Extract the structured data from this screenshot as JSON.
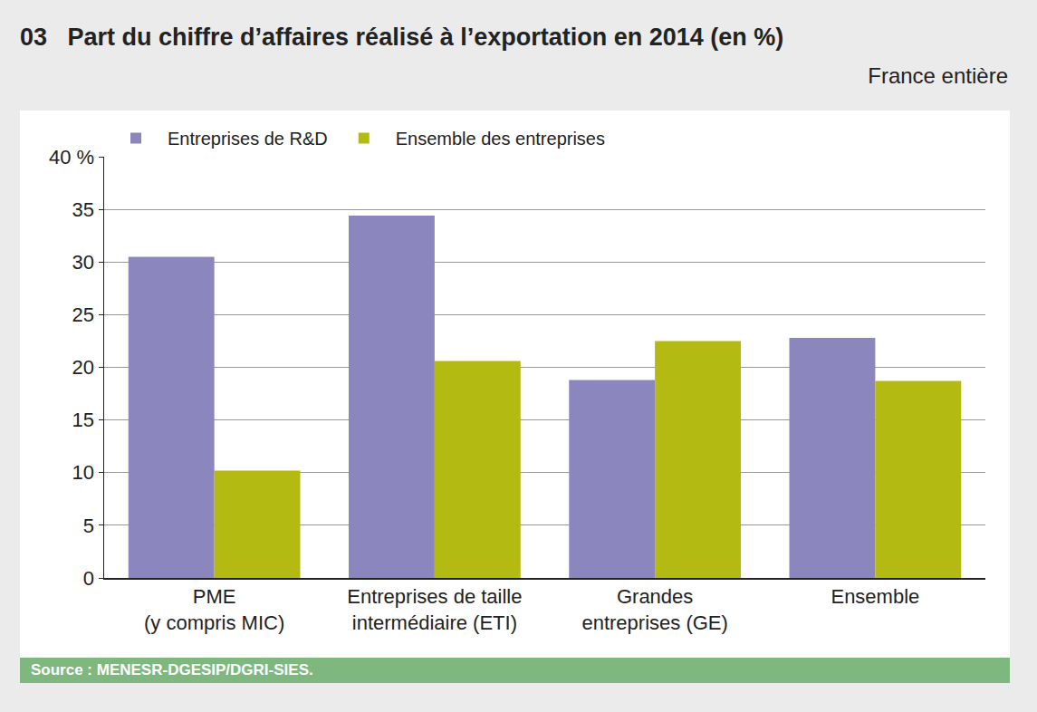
{
  "chart_data": {
    "type": "bar",
    "title": "03   Part du chiffre d’affaires réalisé à l’exportation en 2014 (en %)",
    "subtitle": "France entière",
    "source": "Source : MENESR-DGESIP/DGRI-SIES.",
    "categories": [
      "PME\n(y compris MIC)",
      "Entreprises de taille\nintermédiaire (ETI)",
      "Grandes\nentreprises (GE)",
      "Ensemble"
    ],
    "series": [
      {
        "name": "Entreprises de R&D",
        "color": "#8b87be",
        "values": [
          30.5,
          34.4,
          18.8,
          22.8
        ]
      },
      {
        "name": "Ensemble des entreprises",
        "color": "#b3ba12",
        "values": [
          10.2,
          20.6,
          22.5,
          18.7
        ]
      }
    ],
    "ylim": [
      0,
      40
    ],
    "yticks": [
      0,
      5,
      10,
      15,
      20,
      25,
      30,
      35,
      {
        "value": 40,
        "label": "40 %"
      }
    ],
    "grid": true,
    "legend": "top left"
  }
}
